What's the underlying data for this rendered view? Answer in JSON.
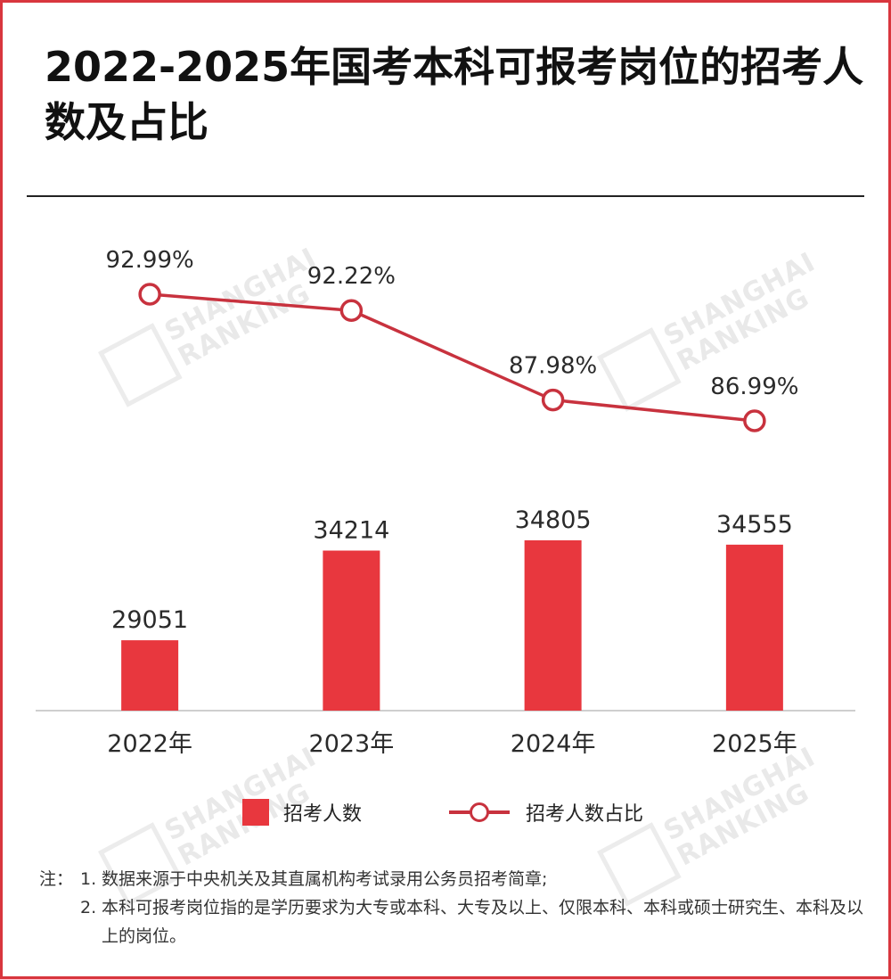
{
  "title": "2022-2025年国考本科可报考岗位的招考人数及占比",
  "chart_data": {
    "type": "bar",
    "categories": [
      "2022年",
      "2023年",
      "2024年",
      "2025年"
    ],
    "series": [
      {
        "name": "招考人数",
        "type": "bar",
        "values": [
          29051,
          34214,
          34805,
          34555
        ],
        "labels": [
          "29051",
          "34214",
          "34805",
          "34555"
        ],
        "color": "#e8373e"
      },
      {
        "name": "招考人数占比",
        "type": "line",
        "values": [
          92.99,
          92.22,
          87.98,
          86.99
        ],
        "labels": [
          "92.99%",
          "92.22%",
          "87.98%",
          "86.99%"
        ],
        "color": "#c8323e"
      }
    ],
    "grid": false,
    "legend_position": "bottom"
  },
  "legend": {
    "bar_label": "招考人数",
    "line_label": "招考人数占比"
  },
  "notes": {
    "prefix": "注：",
    "items": [
      {
        "num": "1.",
        "text": "数据来源于中央机关及其直属机构考试录用公务员招考简章;"
      },
      {
        "num": "2.",
        "text": "本科可报考岗位指的是学历要求为大专或本科、大专及以上、仅限本科、本科或硕士研究生、本科及以上的岗位。"
      }
    ]
  },
  "watermark": {
    "line1": "SHANGHAI",
    "line2": "RANKING"
  }
}
